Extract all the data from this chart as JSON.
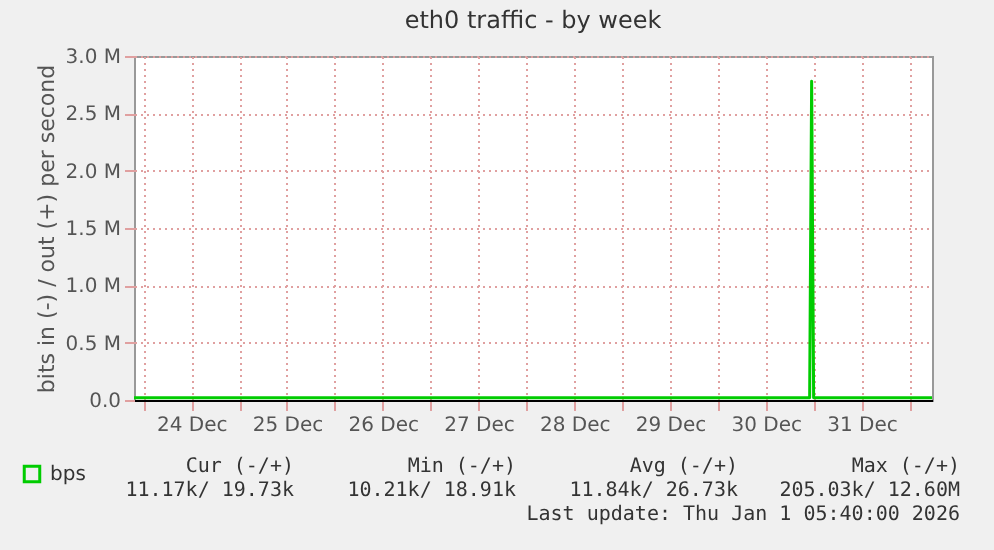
{
  "chart_data": {
    "type": "line",
    "title": "eth0 traffic - by week",
    "ylabel": "bits in (-) / out (+) per second",
    "x": [
      "2025-12-23T21:40",
      "2025-12-30T23:00",
      "2025-12-30T23:30",
      "2025-12-31T00:00",
      "2026-01-01T05:40"
    ],
    "series": [
      {
        "name": "bps",
        "color": "#00cc00",
        "values": [
          20000,
          20000,
          2780000,
          20000,
          20000
        ]
      }
    ],
    "xlim": [
      "2025-12-23T21:40",
      "2026-01-01T05:40"
    ],
    "xticks": [
      {
        "value": "2025-12-24T00:00",
        "label": null
      },
      {
        "value": "2025-12-24T12:00",
        "label": "24 Dec"
      },
      {
        "value": "2025-12-25T00:00",
        "label": null
      },
      {
        "value": "2025-12-25T12:00",
        "label": "25 Dec"
      },
      {
        "value": "2025-12-26T00:00",
        "label": null
      },
      {
        "value": "2025-12-26T12:00",
        "label": "26 Dec"
      },
      {
        "value": "2025-12-27T00:00",
        "label": null
      },
      {
        "value": "2025-12-27T12:00",
        "label": "27 Dec"
      },
      {
        "value": "2025-12-28T00:00",
        "label": null
      },
      {
        "value": "2025-12-28T12:00",
        "label": "28 Dec"
      },
      {
        "value": "2025-12-29T00:00",
        "label": null
      },
      {
        "value": "2025-12-29T12:00",
        "label": "29 Dec"
      },
      {
        "value": "2025-12-30T00:00",
        "label": null
      },
      {
        "value": "2025-12-30T12:00",
        "label": "30 Dec"
      },
      {
        "value": "2025-12-31T00:00",
        "label": null
      },
      {
        "value": "2025-12-31T12:00",
        "label": "31 Dec"
      },
      {
        "value": "2026-01-01T00:00",
        "label": null
      }
    ],
    "ylim": [
      0,
      3000000
    ],
    "yticks": [
      {
        "value": 0,
        "label": "0.0"
      },
      {
        "value": 500000,
        "label": "0.5 M"
      },
      {
        "value": 1000000,
        "label": "1.0 M"
      },
      {
        "value": 1500000,
        "label": "1.5 M"
      },
      {
        "value": 2000000,
        "label": "2.0 M"
      },
      {
        "value": 2500000,
        "label": "2.5 M"
      },
      {
        "value": 3000000,
        "label": "3.0 M"
      }
    ],
    "grid": true,
    "legend": "bottom left",
    "marker": "none",
    "line_style": "solid",
    "annotations": [
      "Cur (-/+)",
      "Min (-/+)",
      "Avg (-/+)",
      "Max (-/+)",
      "11.17k/  19.73k",
      "10.21k/  18.91k",
      "11.84k/  26.73k",
      "205.03k/  12.60M",
      "Last update: Thu Jan  1 05:40:00 2026"
    ]
  }
}
